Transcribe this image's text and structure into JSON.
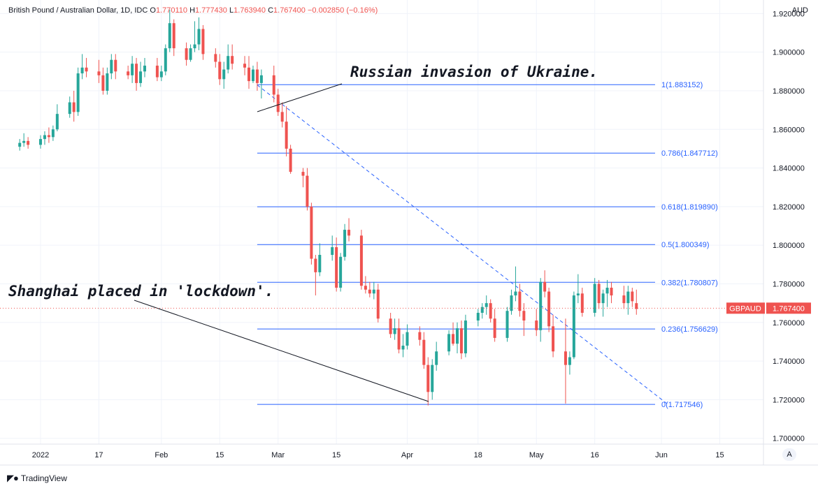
{
  "header": {
    "symbol_desc": "British Pound / Australian Dollar, 1D, IDC",
    "o_label": "O",
    "o_value": "1.770110",
    "h_label": "H",
    "h_value": "1.777430",
    "l_label": "L",
    "l_value": "1.763940",
    "c_label": "C",
    "c_value": "1.767400",
    "change": "−0.002850 (−0.16%)",
    "currency": "AUD"
  },
  "footer": {
    "brand": "TradingView",
    "auto_button": "A"
  },
  "colors": {
    "up": "#26a69a",
    "down": "#ef5350",
    "fib": "#2962ff",
    "grid": "#f0f3fa"
  },
  "annotations": [
    {
      "text": "Russian invasion of Ukraine."
    },
    {
      "text": "Shanghai placed in 'lockdown'."
    }
  ],
  "chart_data": {
    "type": "candlestick",
    "symbol": "GBPAUD",
    "last_price": "1.767400",
    "y_ticks": [
      "1.920000",
      "1.900000",
      "1.880000",
      "1.860000",
      "1.840000",
      "1.820000",
      "1.800000",
      "1.780000",
      "1.760000",
      "1.740000",
      "1.720000",
      "1.700000"
    ],
    "y_tick_values": [
      1.92,
      1.9,
      1.88,
      1.86,
      1.84,
      1.82,
      1.8,
      1.78,
      1.76,
      1.74,
      1.72,
      1.7
    ],
    "ylim": [
      1.697,
      1.927
    ],
    "x_ticks": [
      {
        "label": "2022",
        "date": "2022-01-03"
      },
      {
        "label": "17",
        "date": "2022-01-17"
      },
      {
        "label": "Feb",
        "date": "2022-02-01"
      },
      {
        "label": "15",
        "date": "2022-02-15"
      },
      {
        "label": "Mar",
        "date": "2022-03-01"
      },
      {
        "label": "15",
        "date": "2022-03-15"
      },
      {
        "label": "Apr",
        "date": "2022-04-01"
      },
      {
        "label": "18",
        "date": "2022-04-18"
      },
      {
        "label": "May",
        "date": "2022-05-02"
      },
      {
        "label": "16",
        "date": "2022-05-16"
      },
      {
        "label": "Jun",
        "date": "2022-06-01"
      },
      {
        "label": "15",
        "date": "2022-06-15"
      }
    ],
    "fib_levels": [
      {
        "label": "1(1.883152)",
        "value": 1.883152
      },
      {
        "label": "0.786(1.847712)",
        "value": 1.847712
      },
      {
        "label": "0.618(1.819890)",
        "value": 1.81989
      },
      {
        "label": "0.5(1.800349)",
        "value": 1.800349
      },
      {
        "label": "0.382(1.780807)",
        "value": 1.780807
      },
      {
        "label": "0.236(1.756629)",
        "value": 1.756629
      },
      {
        "label": "0(1.717546)",
        "value": 1.717546
      }
    ],
    "trend_line": {
      "from": {
        "date": "2022-02-24",
        "value": 1.883
      },
      "to": {
        "date": "2022-05-23",
        "value": 1.717
      }
    },
    "candles": [
      {
        "date": "2021-12-29",
        "o": 1.851,
        "h": 1.855,
        "l": 1.849,
        "c": 1.853
      },
      {
        "date": "2021-12-30",
        "o": 1.853,
        "h": 1.858,
        "l": 1.851,
        "c": 1.854
      },
      {
        "date": "2021-12-31",
        "o": 1.854,
        "h": 1.856,
        "l": 1.85,
        "c": 1.852
      },
      {
        "date": "2022-01-03",
        "o": 1.852,
        "h": 1.857,
        "l": 1.85,
        "c": 1.855
      },
      {
        "date": "2022-01-04",
        "o": 1.855,
        "h": 1.859,
        "l": 1.852,
        "c": 1.857
      },
      {
        "date": "2022-01-05",
        "o": 1.857,
        "h": 1.861,
        "l": 1.853,
        "c": 1.856
      },
      {
        "date": "2022-01-06",
        "o": 1.856,
        "h": 1.862,
        "l": 1.854,
        "c": 1.86
      },
      {
        "date": "2022-01-07",
        "o": 1.86,
        "h": 1.873,
        "l": 1.859,
        "c": 1.868
      },
      {
        "date": "2022-01-10",
        "o": 1.868,
        "h": 1.877,
        "l": 1.866,
        "c": 1.874
      },
      {
        "date": "2022-01-11",
        "o": 1.874,
        "h": 1.88,
        "l": 1.864,
        "c": 1.869
      },
      {
        "date": "2022-01-12",
        "o": 1.869,
        "h": 1.892,
        "l": 1.867,
        "c": 1.889
      },
      {
        "date": "2022-01-13",
        "o": 1.889,
        "h": 1.899,
        "l": 1.886,
        "c": 1.892
      },
      {
        "date": "2022-01-14",
        "o": 1.892,
        "h": 1.897,
        "l": 1.887,
        "c": 1.89
      },
      {
        "date": "2022-01-17",
        "o": 1.89,
        "h": 1.896,
        "l": 1.884,
        "c": 1.888
      },
      {
        "date": "2022-01-18",
        "o": 1.888,
        "h": 1.892,
        "l": 1.878,
        "c": 1.88
      },
      {
        "date": "2022-01-19",
        "o": 1.88,
        "h": 1.892,
        "l": 1.878,
        "c": 1.889
      },
      {
        "date": "2022-01-20",
        "o": 1.889,
        "h": 1.899,
        "l": 1.886,
        "c": 1.896
      },
      {
        "date": "2022-01-21",
        "o": 1.896,
        "h": 1.899,
        "l": 1.886,
        "c": 1.89
      },
      {
        "date": "2022-01-24",
        "o": 1.89,
        "h": 1.893,
        "l": 1.886,
        "c": 1.888
      },
      {
        "date": "2022-01-25",
        "o": 1.888,
        "h": 1.898,
        "l": 1.884,
        "c": 1.894
      },
      {
        "date": "2022-01-26",
        "o": 1.894,
        "h": 1.897,
        "l": 1.88,
        "c": 1.884
      },
      {
        "date": "2022-01-27",
        "o": 1.884,
        "h": 1.895,
        "l": 1.882,
        "c": 1.89
      },
      {
        "date": "2022-01-28",
        "o": 1.89,
        "h": 1.897,
        "l": 1.887,
        "c": 1.893
      },
      {
        "date": "2022-01-31",
        "o": 1.893,
        "h": 1.897,
        "l": 1.885,
        "c": 1.887
      },
      {
        "date": "2022-02-01",
        "o": 1.887,
        "h": 1.893,
        "l": 1.885,
        "c": 1.89
      },
      {
        "date": "2022-02-02",
        "o": 1.89,
        "h": 1.904,
        "l": 1.888,
        "c": 1.902
      },
      {
        "date": "2022-02-03",
        "o": 1.902,
        "h": 1.922,
        "l": 1.9,
        "c": 1.915
      },
      {
        "date": "2022-02-04",
        "o": 1.915,
        "h": 1.917,
        "l": 1.898,
        "c": 1.902
      },
      {
        "date": "2022-02-07",
        "o": 1.902,
        "h": 1.905,
        "l": 1.893,
        "c": 1.896
      },
      {
        "date": "2022-02-08",
        "o": 1.896,
        "h": 1.904,
        "l": 1.895,
        "c": 1.902
      },
      {
        "date": "2022-02-09",
        "o": 1.902,
        "h": 1.916,
        "l": 1.9,
        "c": 1.904
      },
      {
        "date": "2022-02-10",
        "o": 1.904,
        "h": 1.918,
        "l": 1.901,
        "c": 1.912
      },
      {
        "date": "2022-02-11",
        "o": 1.912,
        "h": 1.914,
        "l": 1.896,
        "c": 1.899
      },
      {
        "date": "2022-02-14",
        "o": 1.899,
        "h": 1.902,
        "l": 1.892,
        "c": 1.895
      },
      {
        "date": "2022-02-15",
        "o": 1.895,
        "h": 1.899,
        "l": 1.883,
        "c": 1.886
      },
      {
        "date": "2022-02-16",
        "o": 1.886,
        "h": 1.895,
        "l": 1.881,
        "c": 1.891
      },
      {
        "date": "2022-02-17",
        "o": 1.891,
        "h": 1.904,
        "l": 1.889,
        "c": 1.898
      },
      {
        "date": "2022-02-18",
        "o": 1.898,
        "h": 1.904,
        "l": 1.891,
        "c": 1.894
      },
      {
        "date": "2022-02-21",
        "o": 1.894,
        "h": 1.898,
        "l": 1.888,
        "c": 1.892
      },
      {
        "date": "2022-02-22",
        "o": 1.892,
        "h": 1.898,
        "l": 1.881,
        "c": 1.885
      },
      {
        "date": "2022-02-23",
        "o": 1.885,
        "h": 1.893,
        "l": 1.884,
        "c": 1.891
      },
      {
        "date": "2022-02-24",
        "o": 1.891,
        "h": 1.895,
        "l": 1.88,
        "c": 1.884
      },
      {
        "date": "2022-02-25",
        "o": 1.884,
        "h": 1.891,
        "l": 1.876,
        "c": 1.888
      },
      {
        "date": "2022-02-28",
        "o": 1.888,
        "h": 1.893,
        "l": 1.874,
        "c": 1.878
      },
      {
        "date": "2022-03-01",
        "o": 1.878,
        "h": 1.881,
        "l": 1.867,
        "c": 1.869
      },
      {
        "date": "2022-03-02",
        "o": 1.869,
        "h": 1.874,
        "l": 1.861,
        "c": 1.864
      },
      {
        "date": "2022-03-03",
        "o": 1.864,
        "h": 1.872,
        "l": 1.846,
        "c": 1.85
      },
      {
        "date": "2022-03-04",
        "o": 1.85,
        "h": 1.852,
        "l": 1.837,
        "c": 1.838
      },
      {
        "date": "2022-03-07",
        "o": 1.838,
        "h": 1.84,
        "l": 1.83,
        "c": 1.836
      },
      {
        "date": "2022-03-08",
        "o": 1.836,
        "h": 1.84,
        "l": 1.818,
        "c": 1.82
      },
      {
        "date": "2022-03-09",
        "o": 1.82,
        "h": 1.822,
        "l": 1.79,
        "c": 1.793
      },
      {
        "date": "2022-03-10",
        "o": 1.793,
        "h": 1.795,
        "l": 1.774,
        "c": 1.786
      },
      {
        "date": "2022-03-11",
        "o": 1.786,
        "h": 1.801,
        "l": 1.784,
        "c": 1.795
      },
      {
        "date": "2022-03-14",
        "o": 1.795,
        "h": 1.805,
        "l": 1.792,
        "c": 1.799
      },
      {
        "date": "2022-03-15",
        "o": 1.799,
        "h": 1.804,
        "l": 1.776,
        "c": 1.778
      },
      {
        "date": "2022-03-16",
        "o": 1.778,
        "h": 1.796,
        "l": 1.776,
        "c": 1.794
      },
      {
        "date": "2022-03-17",
        "o": 1.794,
        "h": 1.811,
        "l": 1.792,
        "c": 1.808
      },
      {
        "date": "2022-03-18",
        "o": 1.808,
        "h": 1.814,
        "l": 1.802,
        "c": 1.805
      },
      {
        "date": "2022-03-21",
        "o": 1.805,
        "h": 1.808,
        "l": 1.777,
        "c": 1.779
      },
      {
        "date": "2022-03-22",
        "o": 1.779,
        "h": 1.784,
        "l": 1.775,
        "c": 1.777
      },
      {
        "date": "2022-03-23",
        "o": 1.777,
        "h": 1.781,
        "l": 1.773,
        "c": 1.775
      },
      {
        "date": "2022-03-24",
        "o": 1.775,
        "h": 1.781,
        "l": 1.772,
        "c": 1.777
      },
      {
        "date": "2022-03-25",
        "o": 1.777,
        "h": 1.78,
        "l": 1.76,
        "c": 1.762
      },
      {
        "date": "2022-03-28",
        "o": 1.762,
        "h": 1.765,
        "l": 1.752,
        "c": 1.754
      },
      {
        "date": "2022-03-29",
        "o": 1.754,
        "h": 1.762,
        "l": 1.751,
        "c": 1.757
      },
      {
        "date": "2022-03-30",
        "o": 1.757,
        "h": 1.762,
        "l": 1.744,
        "c": 1.746
      },
      {
        "date": "2022-03-31",
        "o": 1.746,
        "h": 1.754,
        "l": 1.742,
        "c": 1.748
      },
      {
        "date": "2022-04-01",
        "o": 1.748,
        "h": 1.759,
        "l": 1.746,
        "c": 1.755
      },
      {
        "date": "2022-04-04",
        "o": 1.755,
        "h": 1.758,
        "l": 1.748,
        "c": 1.751
      },
      {
        "date": "2022-04-05",
        "o": 1.751,
        "h": 1.755,
        "l": 1.736,
        "c": 1.738
      },
      {
        "date": "2022-04-06",
        "o": 1.738,
        "h": 1.742,
        "l": 1.717,
        "c": 1.724
      },
      {
        "date": "2022-04-07",
        "o": 1.724,
        "h": 1.741,
        "l": 1.72,
        "c": 1.738
      },
      {
        "date": "2022-04-08",
        "o": 1.738,
        "h": 1.75,
        "l": 1.735,
        "c": 1.745
      },
      {
        "date": "2022-04-11",
        "o": 1.745,
        "h": 1.756,
        "l": 1.743,
        "c": 1.754
      },
      {
        "date": "2022-04-12",
        "o": 1.754,
        "h": 1.76,
        "l": 1.748,
        "c": 1.749
      },
      {
        "date": "2022-04-13",
        "o": 1.749,
        "h": 1.76,
        "l": 1.744,
        "c": 1.757
      },
      {
        "date": "2022-04-14",
        "o": 1.757,
        "h": 1.761,
        "l": 1.741,
        "c": 1.744
      },
      {
        "date": "2022-04-15",
        "o": 1.744,
        "h": 1.764,
        "l": 1.742,
        "c": 1.761
      },
      {
        "date": "2022-04-18",
        "o": 1.761,
        "h": 1.767,
        "l": 1.758,
        "c": 1.765
      },
      {
        "date": "2022-04-19",
        "o": 1.765,
        "h": 1.77,
        "l": 1.762,
        "c": 1.768
      },
      {
        "date": "2022-04-20",
        "o": 1.768,
        "h": 1.774,
        "l": 1.764,
        "c": 1.77
      },
      {
        "date": "2022-04-21",
        "o": 1.77,
        "h": 1.772,
        "l": 1.76,
        "c": 1.762
      },
      {
        "date": "2022-04-22",
        "o": 1.762,
        "h": 1.767,
        "l": 1.75,
        "c": 1.752
      },
      {
        "date": "2022-04-25",
        "o": 1.752,
        "h": 1.768,
        "l": 1.75,
        "c": 1.766
      },
      {
        "date": "2022-04-26",
        "o": 1.766,
        "h": 1.777,
        "l": 1.764,
        "c": 1.774
      },
      {
        "date": "2022-04-27",
        "o": 1.774,
        "h": 1.789,
        "l": 1.771,
        "c": 1.776
      },
      {
        "date": "2022-04-28",
        "o": 1.776,
        "h": 1.78,
        "l": 1.763,
        "c": 1.766
      },
      {
        "date": "2022-04-29",
        "o": 1.766,
        "h": 1.77,
        "l": 1.753,
        "c": 1.761
      },
      {
        "date": "2022-05-02",
        "o": 1.761,
        "h": 1.767,
        "l": 1.753,
        "c": 1.756
      },
      {
        "date": "2022-05-03",
        "o": 1.756,
        "h": 1.783,
        "l": 1.75,
        "c": 1.781
      },
      {
        "date": "2022-05-04",
        "o": 1.781,
        "h": 1.787,
        "l": 1.773,
        "c": 1.776
      },
      {
        "date": "2022-05-05",
        "o": 1.776,
        "h": 1.778,
        "l": 1.755,
        "c": 1.758
      },
      {
        "date": "2022-05-06",
        "o": 1.758,
        "h": 1.764,
        "l": 1.742,
        "c": 1.745
      },
      {
        "date": "2022-05-09",
        "o": 1.745,
        "h": 1.762,
        "l": 1.718,
        "c": 1.738
      },
      {
        "date": "2022-05-10",
        "o": 1.738,
        "h": 1.745,
        "l": 1.733,
        "c": 1.742
      },
      {
        "date": "2022-05-11",
        "o": 1.742,
        "h": 1.776,
        "l": 1.741,
        "c": 1.774
      },
      {
        "date": "2022-05-12",
        "o": 1.774,
        "h": 1.785,
        "l": 1.77,
        "c": 1.775
      },
      {
        "date": "2022-05-13",
        "o": 1.775,
        "h": 1.778,
        "l": 1.763,
        "c": 1.765
      },
      {
        "date": "2022-05-16",
        "o": 1.765,
        "h": 1.783,
        "l": 1.763,
        "c": 1.78
      },
      {
        "date": "2022-05-17",
        "o": 1.78,
        "h": 1.782,
        "l": 1.767,
        "c": 1.77
      },
      {
        "date": "2022-05-18",
        "o": 1.77,
        "h": 1.777,
        "l": 1.763,
        "c": 1.775
      },
      {
        "date": "2022-05-19",
        "o": 1.775,
        "h": 1.782,
        "l": 1.768,
        "c": 1.778
      },
      {
        "date": "2022-05-20",
        "o": 1.778,
        "h": 1.781,
        "l": 1.77,
        "c": 1.774
      },
      {
        "date": "2022-05-23",
        "o": 1.774,
        "h": 1.779,
        "l": 1.767,
        "c": 1.77
      },
      {
        "date": "2022-05-24",
        "o": 1.77,
        "h": 1.779,
        "l": 1.764,
        "c": 1.776
      },
      {
        "date": "2022-05-25",
        "o": 1.776,
        "h": 1.778,
        "l": 1.768,
        "c": 1.771
      },
      {
        "date": "2022-05-26",
        "o": 1.77,
        "h": 1.777,
        "l": 1.764,
        "c": 1.767
      }
    ]
  }
}
